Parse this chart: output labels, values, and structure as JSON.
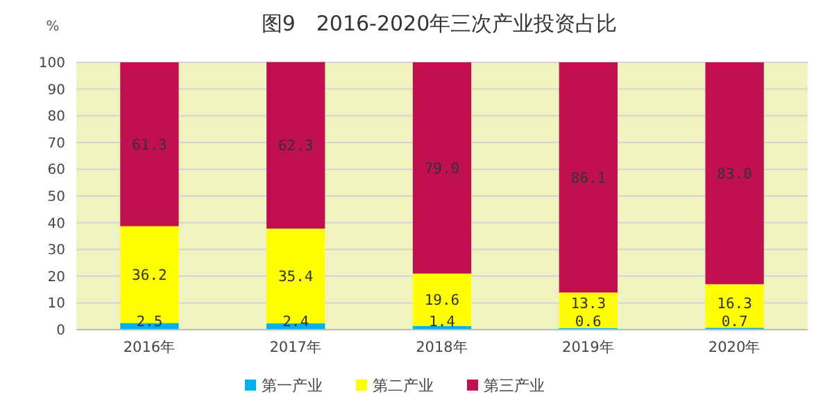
{
  "chart_data": {
    "type": "bar",
    "title": "图9　2016-2020年三次产业投资占比",
    "ylabel": "%",
    "stacked": true,
    "categories": [
      "2016年",
      "2017年",
      "2018年",
      "2019年",
      "2020年"
    ],
    "series": [
      {
        "name": "第一产业",
        "color": "#00b0f0",
        "values": [
          2.5,
          2.4,
          1.4,
          0.6,
          0.7
        ],
        "value_labels": [
          "2.5",
          "2.4",
          "1.4",
          "0.6",
          "0.7"
        ]
      },
      {
        "name": "第二产业",
        "color": "#ffff00",
        "values": [
          36.2,
          35.4,
          19.6,
          13.3,
          16.3
        ],
        "value_labels": [
          "36.2",
          "35.4",
          "19.6",
          "13.3",
          "16.3"
        ]
      },
      {
        "name": "第三产业",
        "color": "#c0104f",
        "values": [
          61.3,
          62.3,
          79.0,
          86.1,
          83.0
        ],
        "value_labels": [
          "61.3",
          "62.3",
          "79.0",
          "86.1",
          "83.0"
        ]
      }
    ],
    "ylim": [
      0,
      100
    ],
    "yticks": [
      0,
      10,
      20,
      30,
      40,
      50,
      60,
      70,
      80,
      90,
      100
    ],
    "grid": "y",
    "legend": "bottom"
  }
}
